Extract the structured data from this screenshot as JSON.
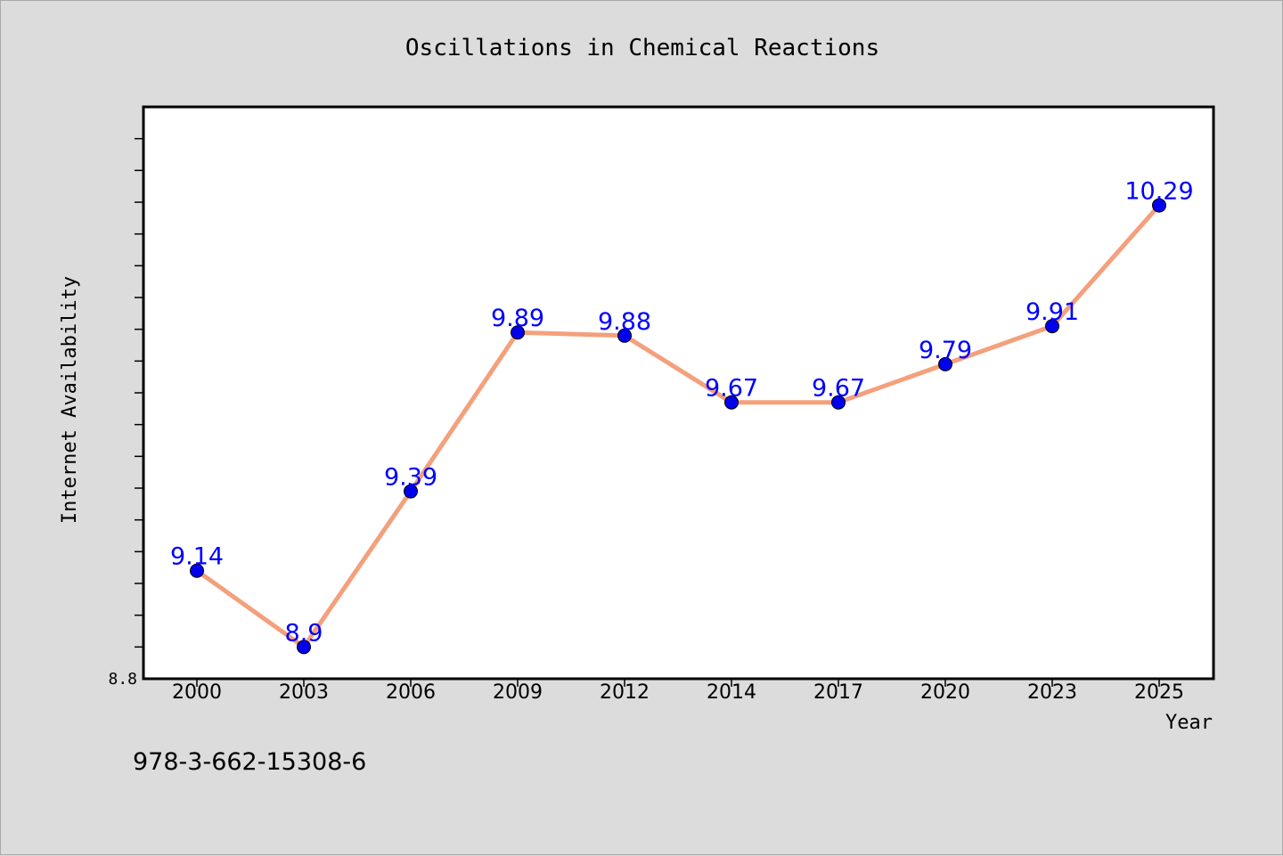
{
  "colors": {
    "background": "#dcdcdc",
    "plot_background": "#ffffff",
    "line": "#f4a07c",
    "marker": "#0000ee",
    "data_label": "#0000ff",
    "axis": "#000000"
  },
  "footer": {
    "isbn": "978-3-662-15308-6"
  },
  "chart_data": {
    "type": "line",
    "title": "Oscillations in Chemical Reactions",
    "xlabel": "Year",
    "ylabel": "Internet Availability",
    "categories": [
      "2000",
      "2003",
      "2006",
      "2009",
      "2012",
      "2014",
      "2017",
      "2020",
      "2023",
      "2025"
    ],
    "series": [
      {
        "values": [
          9.14,
          8.9,
          9.39,
          9.89,
          9.88,
          9.67,
          9.67,
          9.79,
          9.91,
          10.29
        ]
      }
    ],
    "data_labels": [
      "9.14",
      "8.9",
      "9.39",
      "9.89",
      "9.88",
      "9.67",
      "9.67",
      "9.79",
      "9.91",
      "10.29"
    ],
    "ylim": [
      8.8,
      10.6
    ],
    "y_tick_labels": [
      "8.8"
    ],
    "grid": false,
    "legend": "none",
    "markers": "filled circles"
  }
}
